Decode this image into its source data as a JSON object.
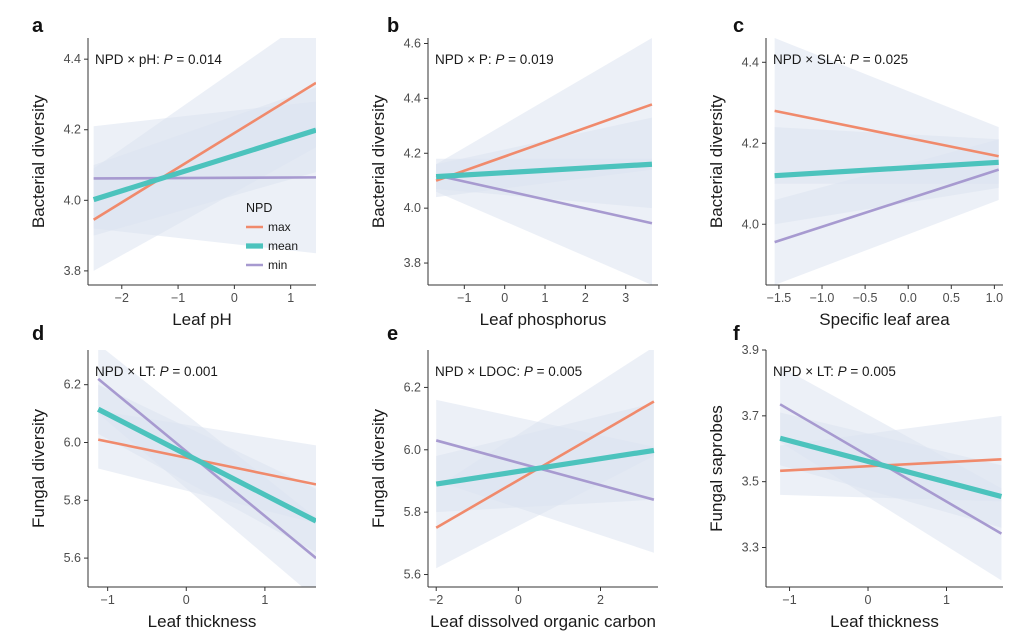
{
  "colors": {
    "max": "#f08a6c",
    "mean": "#4cc3bd",
    "min": "#a79ad0",
    "band": "#dde3f1",
    "axis": "#333333"
  },
  "legend": {
    "title": "NPD",
    "items": [
      "max",
      "mean",
      "min"
    ]
  },
  "chart_data": [
    {
      "type": "line",
      "letter": "a",
      "title": "NPD × pH: ",
      "p_label": "P",
      "p_value": " = 0.014",
      "xlabel": "Leaf pH",
      "ylabel": "Bacterial diversity",
      "xlim": [
        -2.6,
        1.45
      ],
      "ylim": [
        3.76,
        4.46
      ],
      "xticks": [
        -2,
        -1,
        0,
        1
      ],
      "xtick_labels": [
        "−2",
        "−1",
        "0",
        "1"
      ],
      "yticks": [
        3.8,
        4.0,
        4.2,
        4.4
      ],
      "ytick_labels": [
        "3.8",
        "4.0",
        "4.2",
        "4.4"
      ],
      "x_range": [
        -2.5,
        1.45
      ],
      "series": [
        {
          "name": "max",
          "x": [
            -2.5,
            1.45
          ],
          "y": [
            3.945,
            4.333
          ],
          "band": [
            [
              3.8,
              4.09
            ],
            [
              4.15,
              4.53
            ]
          ]
        },
        {
          "name": "mean",
          "x": [
            -2.5,
            1.45
          ],
          "y": [
            4.002,
            4.199
          ],
          "band": [
            [
              3.9,
              4.1
            ],
            [
              4.08,
              4.32
            ]
          ]
        },
        {
          "name": "min",
          "x": [
            -2.5,
            1.45
          ],
          "y": [
            4.062,
            4.065
          ],
          "band": [
            [
              3.92,
              4.21
            ],
            [
              3.85,
              4.28
            ]
          ]
        }
      ],
      "legend_shown": true
    },
    {
      "type": "line",
      "letter": "b",
      "title": "NPD × P: ",
      "p_label": "P",
      "p_value": " = 0.019",
      "xlabel": "Leaf phosphorus",
      "ylabel": "Bacterial diversity",
      "xlim": [
        -1.9,
        3.8
      ],
      "ylim": [
        3.72,
        4.62
      ],
      "xticks": [
        -1,
        0,
        1,
        2,
        3
      ],
      "xtick_labels": [
        "−1",
        "0",
        "1",
        "2",
        "3"
      ],
      "yticks": [
        3.8,
        4.0,
        4.2,
        4.4,
        4.6
      ],
      "ytick_labels": [
        "3.8",
        "4.0",
        "4.2",
        "4.4",
        "4.6"
      ],
      "x_range": [
        -1.7,
        3.65
      ],
      "series": [
        {
          "name": "max",
          "x": [
            -1.7,
            3.65
          ],
          "y": [
            4.1,
            4.378
          ],
          "band": [
            [
              4.04,
              4.16
            ],
            [
              4.14,
              4.62
            ]
          ]
        },
        {
          "name": "mean",
          "x": [
            -1.7,
            3.65
          ],
          "y": [
            4.115,
            4.16
          ],
          "band": [
            [
              4.07,
              4.16
            ],
            [
              4.0,
              4.33
            ]
          ]
        },
        {
          "name": "min",
          "x": [
            -1.7,
            3.65
          ],
          "y": [
            4.12,
            3.945
          ],
          "band": [
            [
              4.06,
              4.18
            ],
            [
              3.72,
              4.18
            ]
          ]
        }
      ],
      "legend_shown": false
    },
    {
      "type": "line",
      "letter": "c",
      "title": "NPD × SLA: ",
      "p_label": "P",
      "p_value": " = 0.025",
      "xlabel": "Specific leaf area",
      "ylabel": "Bacterial diversity",
      "xlim": [
        -1.65,
        1.1
      ],
      "ylim": [
        3.85,
        4.46
      ],
      "xticks": [
        -1.5,
        -1.0,
        -0.5,
        0.0,
        0.5,
        1.0
      ],
      "xtick_labels": [
        "−1.5",
        "−1.0",
        "−0.5",
        "0.0",
        "0.5",
        "1.0"
      ],
      "yticks": [
        4.0,
        4.2,
        4.4
      ],
      "ytick_labels": [
        "4.0",
        "4.2",
        "4.4"
      ],
      "x_range": [
        -1.55,
        1.05
      ],
      "series": [
        {
          "name": "max",
          "x": [
            -1.55,
            1.05
          ],
          "y": [
            4.28,
            4.168
          ],
          "band": [
            [
              4.1,
              4.46
            ],
            [
              4.1,
              4.24
            ]
          ]
        },
        {
          "name": "mean",
          "x": [
            -1.55,
            1.05
          ],
          "y": [
            4.12,
            4.153
          ],
          "band": [
            [
              4.0,
              4.24
            ],
            [
              4.09,
              4.21
            ]
          ]
        },
        {
          "name": "min",
          "x": [
            -1.55,
            1.05
          ],
          "y": [
            3.956,
            4.135
          ],
          "band": [
            [
              3.85,
              4.06
            ],
            [
              4.06,
              4.21
            ]
          ]
        }
      ],
      "legend_shown": false
    },
    {
      "type": "line",
      "letter": "d",
      "title": "NPD × LT: ",
      "p_label": "P",
      "p_value": " = 0.001",
      "xlabel": "Leaf thickness",
      "ylabel": "Fungal diversity",
      "xlim": [
        -1.25,
        1.65
      ],
      "ylim": [
        5.5,
        6.32
      ],
      "xticks": [
        -1,
        0,
        1
      ],
      "xtick_labels": [
        "−1",
        "0",
        "1"
      ],
      "yticks": [
        5.6,
        5.8,
        6.0,
        6.2
      ],
      "ytick_labels": [
        "5.6",
        "5.8",
        "6.0",
        "6.2"
      ],
      "x_range": [
        -1.12,
        1.65
      ],
      "series": [
        {
          "name": "max",
          "x": [
            -1.12,
            1.65
          ],
          "y": [
            6.01,
            5.855
          ],
          "band": [
            [
              5.91,
              6.11
            ],
            [
              5.72,
              5.99
            ]
          ]
        },
        {
          "name": "mean",
          "x": [
            -1.12,
            1.65
          ],
          "y": [
            6.115,
            5.728
          ],
          "band": [
            [
              6.03,
              6.2
            ],
            [
              5.62,
              5.84
            ]
          ]
        },
        {
          "name": "min",
          "x": [
            -1.12,
            1.65
          ],
          "y": [
            6.22,
            5.6
          ],
          "band": [
            [
              6.1,
              6.34
            ],
            [
              5.46,
              5.74
            ]
          ]
        }
      ],
      "legend_shown": false
    },
    {
      "type": "line",
      "letter": "e",
      "title": "NPD × LDOC: ",
      "p_label": "P",
      "p_value": " = 0.005",
      "xlabel": "Leaf dissolved organic carbon",
      "ylabel": "Fungal diversity",
      "xlim": [
        -2.2,
        3.4
      ],
      "ylim": [
        5.56,
        6.32
      ],
      "xticks": [
        -2,
        0,
        2
      ],
      "xtick_labels": [
        "−2",
        "0",
        "2"
      ],
      "yticks": [
        5.6,
        5.8,
        6.0,
        6.2
      ],
      "ytick_labels": [
        "5.6",
        "5.8",
        "6.0",
        "6.2"
      ],
      "x_range": [
        -2.0,
        3.3
      ],
      "series": [
        {
          "name": "max",
          "x": [
            -2.0,
            3.3
          ],
          "y": [
            5.75,
            6.155
          ],
          "band": [
            [
              5.62,
              5.88
            ],
            [
              5.98,
              6.33
            ]
          ]
        },
        {
          "name": "mean",
          "x": [
            -2.0,
            3.3
          ],
          "y": [
            5.89,
            5.998
          ],
          "band": [
            [
              5.8,
              5.98
            ],
            [
              5.84,
              6.15
            ]
          ]
        },
        {
          "name": "min",
          "x": [
            -2.0,
            3.3
          ],
          "y": [
            6.03,
            5.84
          ],
          "band": [
            [
              5.9,
              6.16
            ],
            [
              5.67,
              6.01
            ]
          ]
        }
      ],
      "legend_shown": false
    },
    {
      "type": "line",
      "letter": "f",
      "title": "NPD × LT: ",
      "p_label": "P",
      "p_value": " = 0.005",
      "xlabel": "Leaf thickness",
      "ylabel": "Fungal saprobes",
      "xlim": [
        -1.3,
        1.72
      ],
      "ylim": [
        3.18,
        3.9
      ],
      "xticks": [
        -1,
        0,
        1
      ],
      "xtick_labels": [
        "−1",
        "0",
        "1"
      ],
      "yticks": [
        3.3,
        3.5,
        3.7,
        3.9
      ],
      "ytick_labels": [
        "3.3",
        "3.5",
        "3.7",
        "3.9"
      ],
      "x_range": [
        -1.12,
        1.7
      ],
      "series": [
        {
          "name": "max",
          "x": [
            -1.12,
            1.7
          ],
          "y": [
            3.533,
            3.568
          ],
          "band": [
            [
              3.46,
              3.61
            ],
            [
              3.44,
              3.7
            ]
          ]
        },
        {
          "name": "mean",
          "x": [
            -1.12,
            1.7
          ],
          "y": [
            3.632,
            3.455
          ],
          "band": [
            [
              3.55,
              3.71
            ],
            [
              3.36,
              3.55
            ]
          ]
        },
        {
          "name": "min",
          "x": [
            -1.12,
            1.7
          ],
          "y": [
            3.735,
            3.342
          ],
          "band": [
            [
              3.62,
              3.85
            ],
            [
              3.2,
              3.48
            ]
          ]
        }
      ],
      "legend_shown": false
    }
  ]
}
